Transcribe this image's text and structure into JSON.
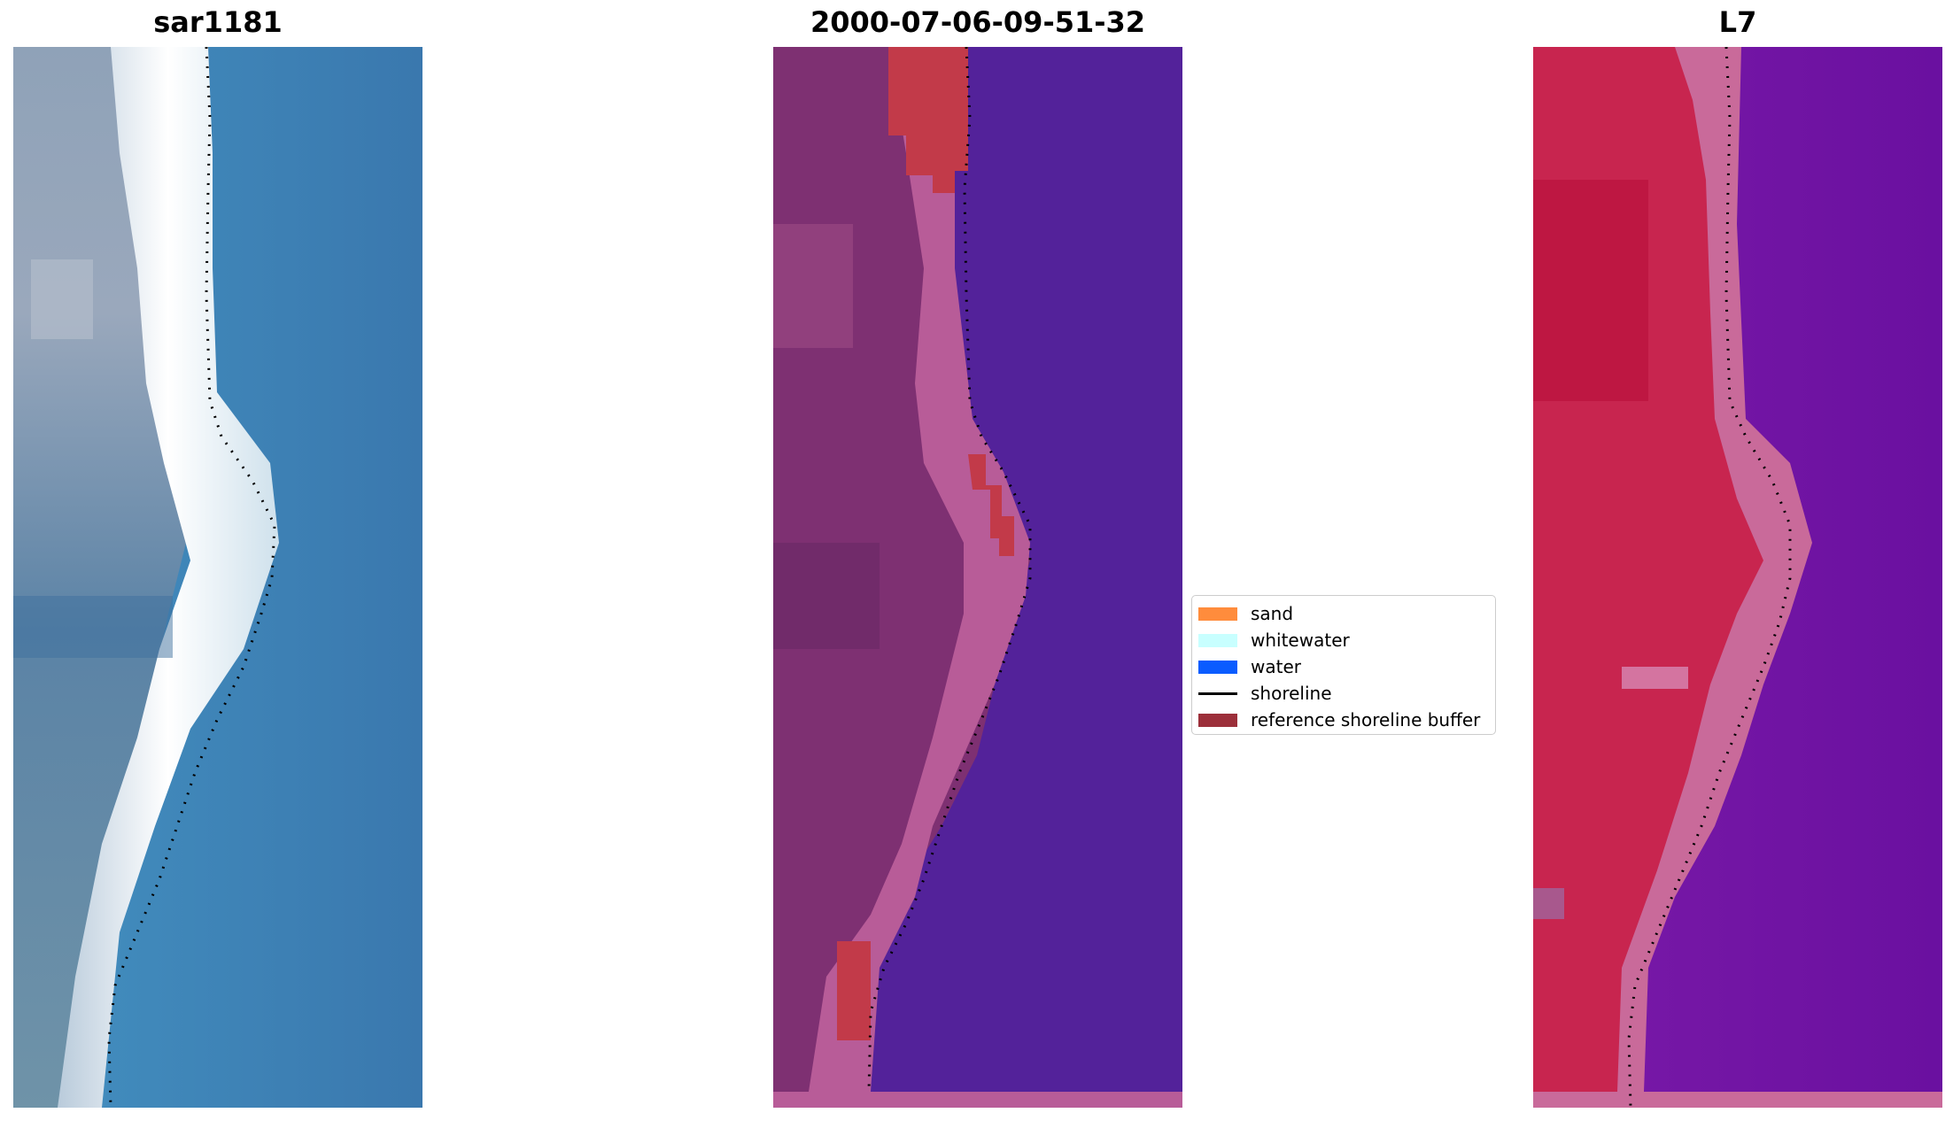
{
  "panels": [
    {
      "title": "sar1181"
    },
    {
      "title": "2000-07-06-09-51-32"
    },
    {
      "title": "L7"
    }
  ],
  "legend": {
    "items": [
      {
        "label": "sand",
        "color": "#ff8c3c",
        "kind": "patch"
      },
      {
        "label": "whitewater",
        "color": "#c8ffff",
        "kind": "patch"
      },
      {
        "label": "water",
        "color": "#0a5cff",
        "kind": "patch"
      },
      {
        "label": "shoreline",
        "color": "#000000",
        "kind": "line"
      },
      {
        "label": "reference shoreline buffer",
        "color": "#9c2f3a",
        "kind": "patch"
      }
    ]
  },
  "colors": {
    "rgb_water": "#3f86ba",
    "rgb_sand": "#eef3f6",
    "rgb_land": "#6e8ca8",
    "classified_water": "#53229a",
    "classified_land": "#7e3072",
    "classified_beach": "#b85c98",
    "buffer_red": "#c23a49",
    "falsecolor_water": "#6b16a6",
    "falsecolor_land": "#c8254f",
    "falsecolor_beach": "#c96a9a"
  }
}
